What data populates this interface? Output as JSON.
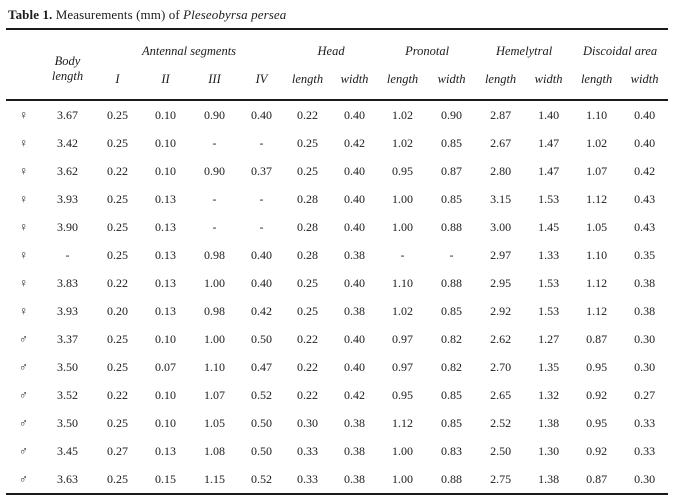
{
  "caption": {
    "label": "Table 1.",
    "text": " Measurements (mm) of ",
    "species": "Pleseobyrsa persea"
  },
  "header": {
    "body_line1": "Body",
    "body_line2": "length",
    "groups": [
      {
        "label": "Antennal segments",
        "cols": [
          "I",
          "II",
          "III",
          "IV"
        ]
      },
      {
        "label": "Head",
        "cols": [
          "length",
          "width"
        ]
      },
      {
        "label": "Pronotal",
        "cols": [
          "length",
          "width"
        ]
      },
      {
        "label": "Hemelytral",
        "cols": [
          "length",
          "width"
        ]
      },
      {
        "label": "Discoidal area",
        "cols": [
          "length",
          "width"
        ]
      }
    ]
  },
  "rows": [
    {
      "sex": "♀",
      "values": [
        "3.67",
        "0.25",
        "0.10",
        "0.90",
        "0.40",
        "0.22",
        "0.40",
        "1.02",
        "0.90",
        "2.87",
        "1.40",
        "1.10",
        "0.40"
      ]
    },
    {
      "sex": "♀",
      "values": [
        "3.42",
        "0.25",
        "0.10",
        "-",
        "-",
        "0.25",
        "0.42",
        "1.02",
        "0.85",
        "2.67",
        "1.47",
        "1.02",
        "0.40"
      ]
    },
    {
      "sex": "♀",
      "values": [
        "3.62",
        "0.22",
        "0.10",
        "0.90",
        "0.37",
        "0.25",
        "0.40",
        "0.95",
        "0.87",
        "2.80",
        "1.47",
        "1.07",
        "0.42"
      ]
    },
    {
      "sex": "♀",
      "values": [
        "3.93",
        "0.25",
        "0.13",
        "-",
        "-",
        "0.28",
        "0.40",
        "1.00",
        "0.85",
        "3.15",
        "1.53",
        "1.12",
        "0.43"
      ]
    },
    {
      "sex": "♀",
      "values": [
        "3.90",
        "0.25",
        "0.13",
        "-",
        "-",
        "0.28",
        "0.40",
        "1.00",
        "0.88",
        "3.00",
        "1.45",
        "1.05",
        "0.43"
      ]
    },
    {
      "sex": "♀",
      "values": [
        "-",
        "0.25",
        "0.13",
        "0.98",
        "0.40",
        "0.28",
        "0.38",
        "-",
        "-",
        "2.97",
        "1.33",
        "1.10",
        "0.35"
      ]
    },
    {
      "sex": "♀",
      "values": [
        "3.83",
        "0.22",
        "0.13",
        "1.00",
        "0.40",
        "0.25",
        "0.40",
        "1.10",
        "0.88",
        "2.95",
        "1.53",
        "1.12",
        "0.38"
      ]
    },
    {
      "sex": "♀",
      "values": [
        "3.93",
        "0.20",
        "0.13",
        "0.98",
        "0.42",
        "0.25",
        "0.38",
        "1.02",
        "0.85",
        "2.92",
        "1.53",
        "1.12",
        "0.38"
      ]
    },
    {
      "sex": "♂",
      "values": [
        "3.37",
        "0.25",
        "0.10",
        "1.00",
        "0.50",
        "0.22",
        "0.40",
        "0.97",
        "0.82",
        "2.62",
        "1.27",
        "0.87",
        "0.30"
      ]
    },
    {
      "sex": "♂",
      "values": [
        "3.50",
        "0.25",
        "0.07",
        "1.10",
        "0.47",
        "0.22",
        "0.40",
        "0.97",
        "0.82",
        "2.70",
        "1.35",
        "0.95",
        "0.30"
      ]
    },
    {
      "sex": "♂",
      "values": [
        "3.52",
        "0.22",
        "0.10",
        "1.07",
        "0.52",
        "0.22",
        "0.42",
        "0.95",
        "0.85",
        "2.65",
        "1.32",
        "0.92",
        "0.27"
      ]
    },
    {
      "sex": "♂",
      "values": [
        "3.50",
        "0.25",
        "0.10",
        "1.05",
        "0.50",
        "0.30",
        "0.38",
        "1.12",
        "0.85",
        "2.52",
        "1.38",
        "0.95",
        "0.33"
      ]
    },
    {
      "sex": "♂",
      "values": [
        "3.45",
        "0.27",
        "0.13",
        "1.08",
        "0.50",
        "0.33",
        "0.38",
        "1.00",
        "0.83",
        "2.50",
        "1.30",
        "0.92",
        "0.33"
      ]
    },
    {
      "sex": "♂",
      "values": [
        "3.63",
        "0.25",
        "0.15",
        "1.15",
        "0.52",
        "0.33",
        "0.38",
        "1.00",
        "0.88",
        "2.75",
        "1.38",
        "0.87",
        "0.30"
      ]
    }
  ],
  "chart_data": {
    "type": "table",
    "title": "Table 1. Measurements (mm) of Pleseobyrsa persea",
    "columns": [
      "sex",
      "Body length",
      "Antennal I",
      "Antennal II",
      "Antennal III",
      "Antennal IV",
      "Head length",
      "Head width",
      "Pronotal length",
      "Pronotal width",
      "Hemelytral length",
      "Hemelytral width",
      "Discoidal area length",
      "Discoidal area width"
    ]
  }
}
